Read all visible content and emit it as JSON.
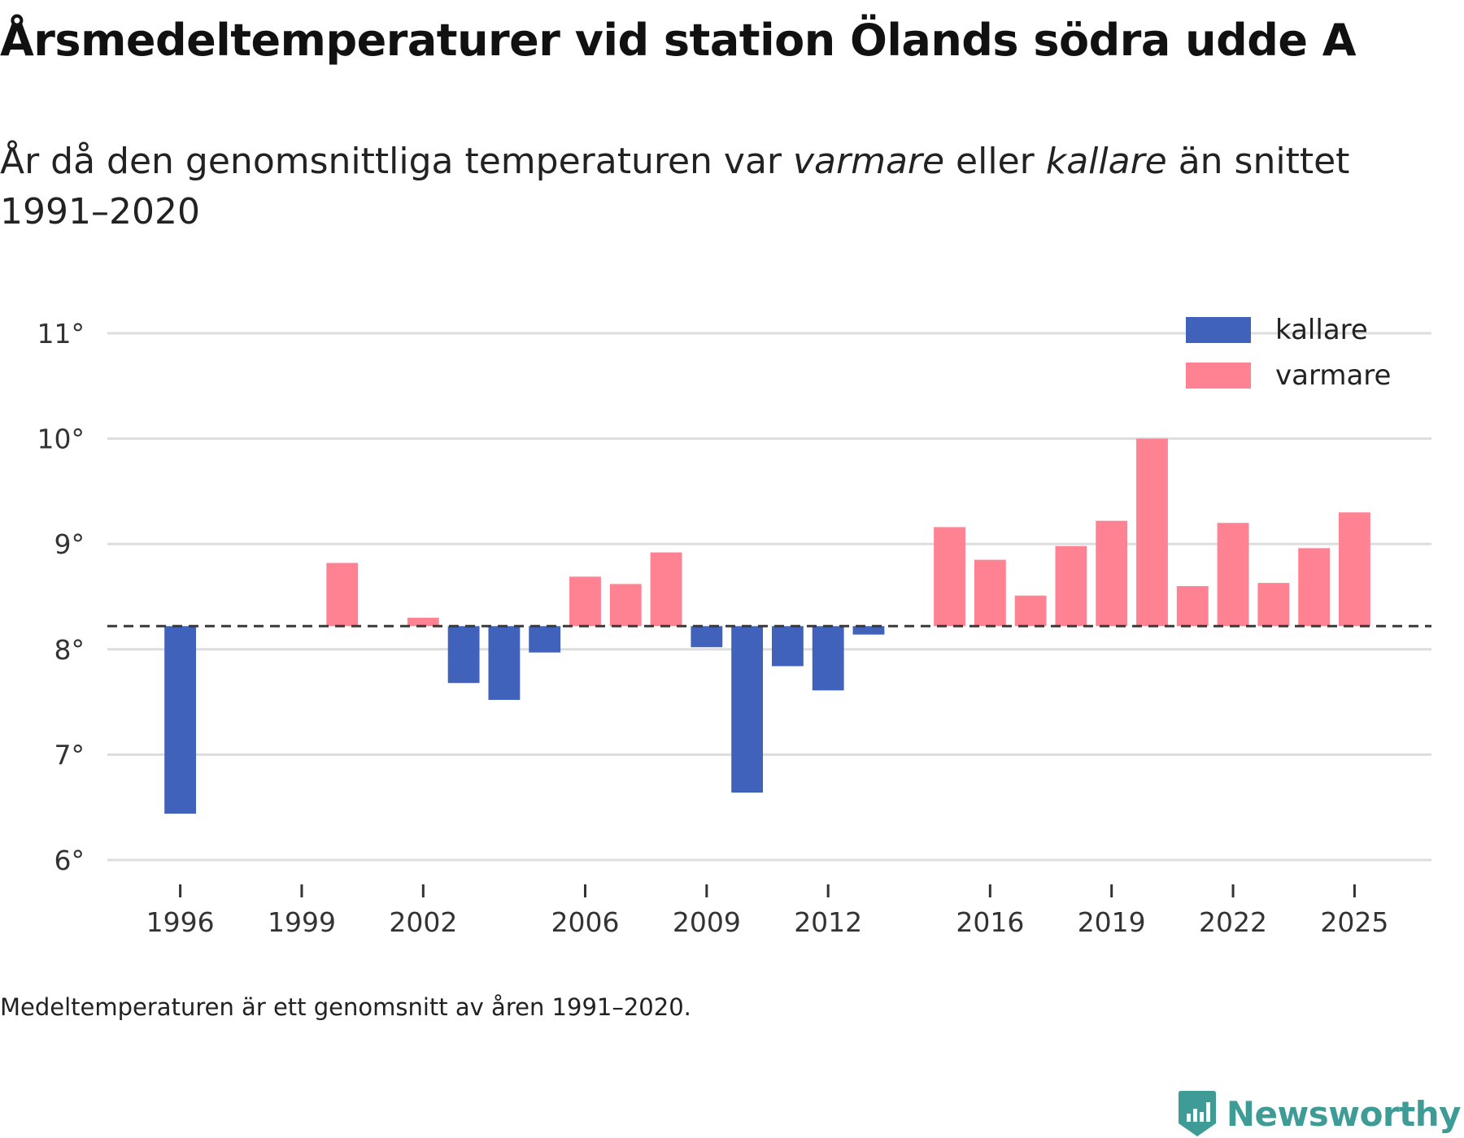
{
  "header": {
    "title": "Årsmedeltemperaturer vid station Ölands södra udde A",
    "subtitle_pre": "År då den genomsnittliga temperaturen var ",
    "subtitle_warm": "varmare",
    "subtitle_mid": " eller ",
    "subtitle_cold": "kallare",
    "subtitle_post": " än snittet 1991–2020"
  },
  "footnote": "Medeltemperaturen är ett genomsnitt av åren 1991–2020.",
  "brand": {
    "name": "Newsworthy",
    "icon": "newsworthy-logo-icon"
  },
  "colors": {
    "cold": "#4062bb",
    "warm": "#ff8292",
    "grid": "#dddddd",
    "baseline": "#3a3a3a",
    "brand": "#3f9b95"
  },
  "chart_data": {
    "type": "bar",
    "title": "Årsmedeltemperaturer vid station Ölands södra udde A",
    "baseline": 8.22,
    "ylim": [
      6,
      11
    ],
    "yticks": [
      {
        "value": 6,
        "label": "6°"
      },
      {
        "value": 7,
        "label": "7°"
      },
      {
        "value": 8,
        "label": "8°"
      },
      {
        "value": 9,
        "label": "9°"
      },
      {
        "value": 10,
        "label": "10°"
      },
      {
        "value": 11,
        "label": "11°"
      }
    ],
    "xlim": [
      1994.2,
      2026.9
    ],
    "xticks": [
      1996,
      1999,
      2002,
      2006,
      2009,
      2012,
      2016,
      2019,
      2022,
      2025
    ],
    "legend": {
      "position": "top-right",
      "items": [
        {
          "key": "cold",
          "label": "kallare"
        },
        {
          "key": "warm",
          "label": "varmare"
        }
      ]
    },
    "data": [
      {
        "year": 1996,
        "value": 6.44
      },
      {
        "year": 2000,
        "value": 8.82
      },
      {
        "year": 2002,
        "value": 8.3
      },
      {
        "year": 2003,
        "value": 7.68
      },
      {
        "year": 2004,
        "value": 7.52
      },
      {
        "year": 2005,
        "value": 7.97
      },
      {
        "year": 2006,
        "value": 8.69
      },
      {
        "year": 2007,
        "value": 8.62
      },
      {
        "year": 2008,
        "value": 8.92
      },
      {
        "year": 2009,
        "value": 8.02
      },
      {
        "year": 2010,
        "value": 6.64
      },
      {
        "year": 2011,
        "value": 7.84
      },
      {
        "year": 2012,
        "value": 7.61
      },
      {
        "year": 2013,
        "value": 8.14
      },
      {
        "year": 2015,
        "value": 9.16
      },
      {
        "year": 2016,
        "value": 8.85
      },
      {
        "year": 2017,
        "value": 8.51
      },
      {
        "year": 2018,
        "value": 8.98
      },
      {
        "year": 2019,
        "value": 9.22
      },
      {
        "year": 2020,
        "value": 10.0
      },
      {
        "year": 2021,
        "value": 8.6
      },
      {
        "year": 2022,
        "value": 9.2
      },
      {
        "year": 2023,
        "value": 8.63
      },
      {
        "year": 2024,
        "value": 8.96
      },
      {
        "year": 2025,
        "value": 9.3
      }
    ]
  }
}
